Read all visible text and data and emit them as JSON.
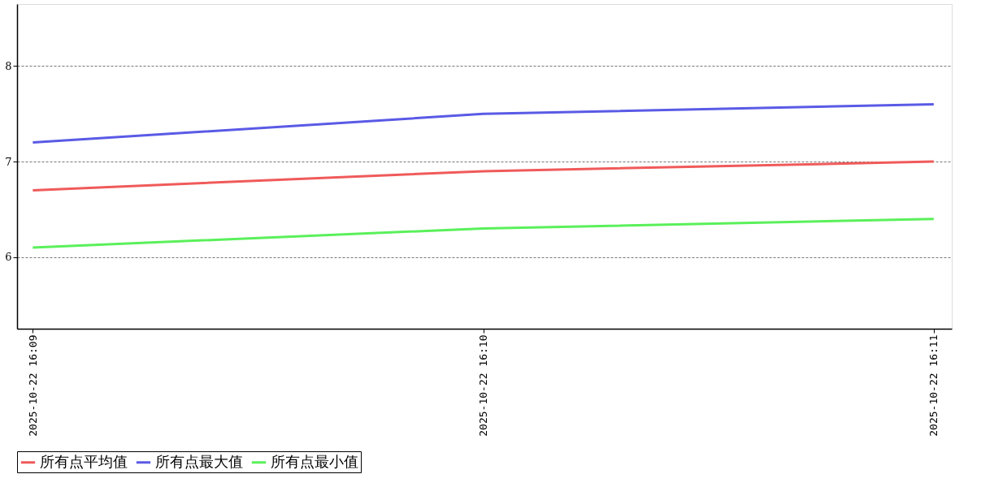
{
  "chart_data": {
    "type": "line",
    "categories": [
      "2025-10-22 16:09",
      "2025-10-22 16:10",
      "2025-10-22 16:11"
    ],
    "series": [
      {
        "name": "所有点平均值",
        "color": "#f05a5a",
        "values": [
          6.7,
          6.9,
          7.0
        ]
      },
      {
        "name": "所有点最大值",
        "color": "#5a5ae6",
        "values": [
          7.2,
          7.5,
          7.6
        ]
      },
      {
        "name": "所有点最小值",
        "color": "#5af05a",
        "values": [
          6.1,
          6.3,
          6.4
        ]
      }
    ],
    "ylim": [
      5.25,
      8.65
    ],
    "yticks": [
      6,
      7,
      8
    ],
    "grid": "y",
    "legend": "bottom",
    "marker": "none",
    "line_style": "solid"
  }
}
